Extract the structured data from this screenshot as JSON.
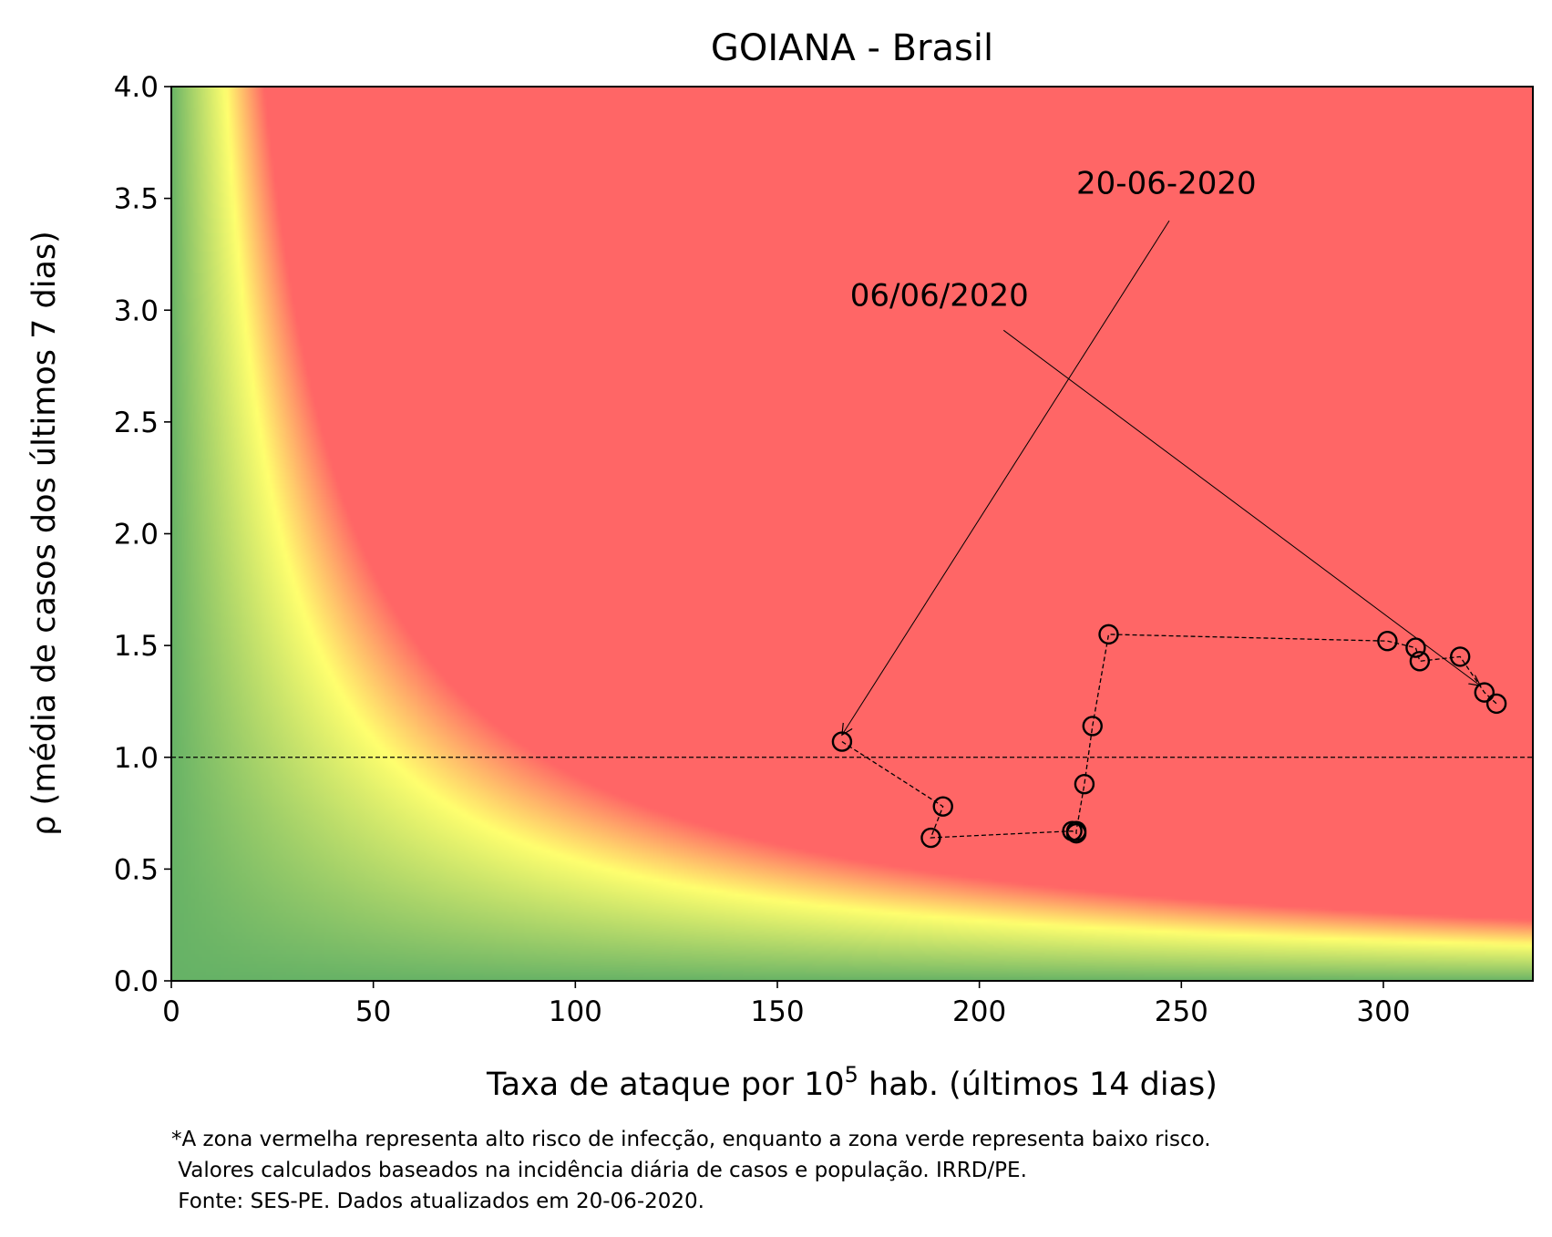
{
  "chart_data": {
    "type": "scatter",
    "title": "GOIANA - Brasil",
    "xlabel_parts": [
      "Taxa de ataque por 10",
      "5",
      " hab. (últimos 14 dias)"
    ],
    "ylabel": "ρ (média de casos dos últimos 7 dias)",
    "xlim": [
      0,
      337
    ],
    "ylim": [
      0,
      4
    ],
    "xticks": [
      0,
      50,
      100,
      150,
      200,
      250,
      300
    ],
    "xtick_labels": [
      "0",
      "50",
      "100",
      "150",
      "200",
      "250",
      "300"
    ],
    "yticks": [
      0,
      0.5,
      1,
      1.5,
      2,
      2.5,
      3,
      3.5,
      4
    ],
    "ytick_labels": [
      "0.0",
      "0.5",
      "1.0",
      "1.5",
      "2.0",
      "2.5",
      "3.0",
      "3.5",
      "4.0"
    ],
    "reference_line_y": 1.0,
    "background": "risk heatmap: green (low) to yellow to red (high)",
    "colors": {
      "red": "#ff6666",
      "yellow": "#ffff6e",
      "green": "#66b266",
      "marker": "#000000"
    },
    "series": [
      {
        "points": [
          {
            "x": 166,
            "y": 1.07
          },
          {
            "x": 191,
            "y": 0.78
          },
          {
            "x": 188,
            "y": 0.64
          },
          {
            "x": 223,
            "y": 0.67
          },
          {
            "x": 224,
            "y": 0.66
          },
          {
            "x": 224,
            "y": 0.67
          },
          {
            "x": 226,
            "y": 0.88
          },
          {
            "x": 228,
            "y": 1.14
          },
          {
            "x": 232,
            "y": 1.55
          },
          {
            "x": 301,
            "y": 1.52
          },
          {
            "x": 308,
            "y": 1.49
          },
          {
            "x": 309,
            "y": 1.43
          },
          {
            "x": 319,
            "y": 1.45
          },
          {
            "x": 325,
            "y": 1.29
          },
          {
            "x": 328,
            "y": 1.24
          }
        ]
      }
    ],
    "annotations": [
      {
        "text": "20-06-2020",
        "text_x": 224,
        "text_y": 3.52,
        "tail": {
          "x": 247,
          "y": 3.4
        },
        "target": {
          "x": 166,
          "y": 1.1
        }
      },
      {
        "text": "06/06/2020",
        "text_x": 168,
        "text_y": 3.02,
        "tail": {
          "x": 206,
          "y": 2.91
        },
        "target": {
          "x": 324,
          "y": 1.32
        }
      }
    ]
  },
  "footnote": [
    "*A zona vermelha representa alto risco de infecção, enquanto a zona verde representa baixo risco.",
    " Valores calculados baseados na incidência diária de casos e população. IRRD/PE.",
    " Fonte: SES-PE. Dados atualizados em 20-06-2020."
  ]
}
